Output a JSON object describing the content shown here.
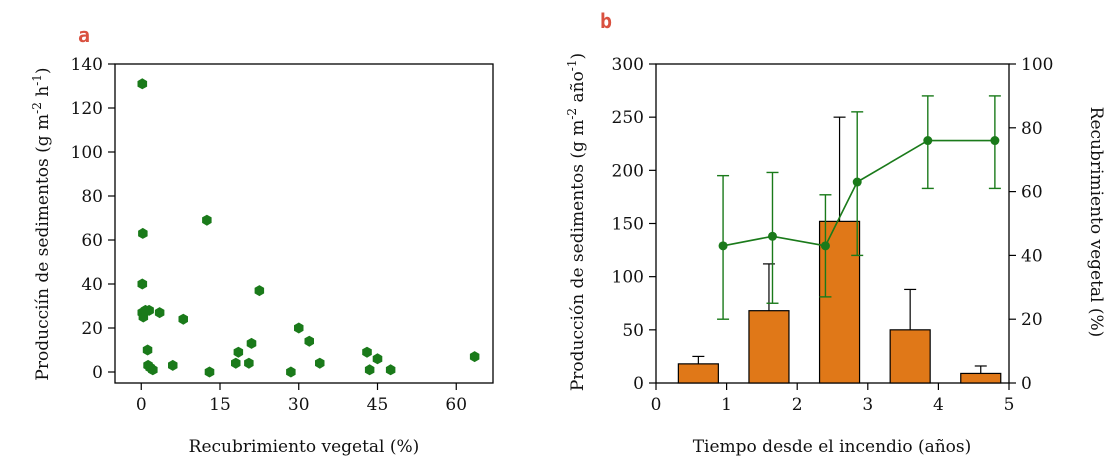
{
  "colors": {
    "green": "#1a7a1a",
    "orange": "#e07818",
    "panel_letter": "#d9503f"
  },
  "chart_data": [
    {
      "type": "scatter",
      "panel_label": "a",
      "xlabel": "Recubrimiento vegetal (%)",
      "ylabel_main": "Producciín de sedimentos (g m",
      "ylabel_sup1": "-2",
      "ylabel_mid": " h",
      "ylabel_sup2": "-1",
      "ylabel_end": ")",
      "xlim": [
        -5,
        67
      ],
      "ylim": [
        -5,
        140
      ],
      "xticks": [
        0,
        15,
        30,
        45,
        60
      ],
      "yticks": [
        0,
        20,
        40,
        60,
        80,
        100,
        120,
        140
      ],
      "marker_color": "#1a7a1a",
      "points": [
        {
          "x": 0.2,
          "y": 131
        },
        {
          "x": 0.3,
          "y": 63
        },
        {
          "x": 0.2,
          "y": 40
        },
        {
          "x": 0.2,
          "y": 27
        },
        {
          "x": 0.4,
          "y": 25
        },
        {
          "x": 0.8,
          "y": 28
        },
        {
          "x": 1.5,
          "y": 28
        },
        {
          "x": 3.5,
          "y": 27
        },
        {
          "x": 1.2,
          "y": 10
        },
        {
          "x": 1.3,
          "y": 3
        },
        {
          "x": 1.7,
          "y": 2
        },
        {
          "x": 2.2,
          "y": 1
        },
        {
          "x": 6,
          "y": 3
        },
        {
          "x": 8,
          "y": 24
        },
        {
          "x": 12.5,
          "y": 69
        },
        {
          "x": 13,
          "y": 0
        },
        {
          "x": 18.5,
          "y": 9
        },
        {
          "x": 18,
          "y": 4
        },
        {
          "x": 20.5,
          "y": 4
        },
        {
          "x": 21,
          "y": 13
        },
        {
          "x": 22.5,
          "y": 37
        },
        {
          "x": 28.5,
          "y": 0
        },
        {
          "x": 30,
          "y": 20
        },
        {
          "x": 32,
          "y": 14
        },
        {
          "x": 34,
          "y": 4
        },
        {
          "x": 43,
          "y": 9
        },
        {
          "x": 43.5,
          "y": 1
        },
        {
          "x": 45,
          "y": 6
        },
        {
          "x": 47.5,
          "y": 1
        },
        {
          "x": 63.5,
          "y": 7
        }
      ]
    },
    {
      "type": "bar+line",
      "panel_label": "b",
      "xlabel": "Tiempo desde el incendio (años)",
      "ylabel_left_main": "Producción de sedimentos (g m",
      "ylabel_left_sup1": "-2",
      "ylabel_left_mid": " año",
      "ylabel_left_sup2": "-1",
      "ylabel_left_end": ")",
      "ylabel_right": "Recubrimiento vegetal (%)",
      "xlim": [
        0,
        5
      ],
      "ylim_left": [
        0,
        300
      ],
      "ylim_right": [
        0,
        100
      ],
      "xticks": [
        0,
        1,
        2,
        3,
        4,
        5
      ],
      "yticks_left": [
        0,
        50,
        100,
        150,
        200,
        250,
        300
      ],
      "yticks_right": [
        0,
        20,
        40,
        60,
        80,
        100
      ],
      "bar_color": "#e07818",
      "line_color": "#1a7a1a",
      "bars": [
        {
          "x": 0.6,
          "value": 18,
          "err": 7
        },
        {
          "x": 1.6,
          "value": 68,
          "err": 44
        },
        {
          "x": 2.6,
          "value": 152,
          "err": 98
        },
        {
          "x": 3.6,
          "value": 50,
          "err": 38
        },
        {
          "x": 4.6,
          "value": 9,
          "err": 7
        }
      ],
      "line": [
        {
          "x": 0.95,
          "value": 43,
          "err_low": 23,
          "err_high": 22
        },
        {
          "x": 1.65,
          "value": 46,
          "err_low": 21,
          "err_high": 20
        },
        {
          "x": 2.4,
          "value": 43,
          "err_low": 16,
          "err_high": 16
        },
        {
          "x": 2.85,
          "value": 63,
          "err_low": 23,
          "err_high": 22
        },
        {
          "x": 3.85,
          "value": 76,
          "err_low": 15,
          "err_high": 14
        },
        {
          "x": 4.8,
          "value": 76,
          "err_low": 15,
          "err_high": 14
        }
      ]
    }
  ]
}
